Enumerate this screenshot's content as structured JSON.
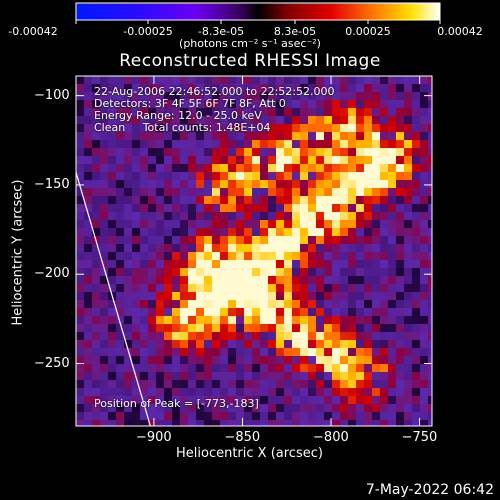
{
  "colorbar": {
    "tick_labels": [
      "-0.00042",
      "-0.00025",
      "-8.3e-05",
      "8.3e-05",
      "0.00025",
      "0.00042"
    ],
    "units": "(photons cm⁻² s⁻¹ asec⁻²)",
    "range": [
      -0.00042,
      0.00042
    ]
  },
  "header": {
    "title": "Reconstructed RHESSI Image"
  },
  "overlay": {
    "line1": "22-Aug-2006 22:46:52.000 to 22:52:52.000",
    "line2": "Detectors: 3F 4F 5F 6F 7F 8F, Att 0",
    "line3": "Energy Range: 12.0 - 25.0 keV",
    "line4": "Clean     Total counts: 1.48E+04",
    "peak": "Position of Peak = [-773,-183]"
  },
  "footer": {
    "date": "7-May-2022 06:42"
  },
  "chart_data": {
    "type": "heatmap",
    "title": "Reconstructed RHESSI Image",
    "xlabel": "Heliocentric X (arcsec)",
    "ylabel": "Heliocentric Y (arcsec)",
    "xlim": [
      -944,
      -743
    ],
    "ylim": [
      -285,
      -89
    ],
    "x_ticks": [
      -900,
      -850,
      -800,
      -750
    ],
    "x_tick_labels": [
      "-900",
      "-850",
      "-800",
      "-750"
    ],
    "y_ticks": [
      -100,
      -150,
      -200,
      -250
    ],
    "y_tick_labels": [
      "-100",
      "-150",
      "-200",
      "-250"
    ],
    "limb_line": [
      [
        -944,
        -143
      ],
      [
        -902,
        -285
      ]
    ],
    "peak_position": [
      -773,
      -183
    ],
    "emission_ridges": [
      {
        "from": [
          -880,
          -225
        ],
        "to": [
          -768,
          -135
        ],
        "peak_value": 0.00042
      },
      {
        "from": [
          -870,
          -195
        ],
        "to": [
          -785,
          -255
        ],
        "peak_value": 0.00034
      },
      {
        "from": [
          -860,
          -150
        ],
        "to": [
          -790,
          -120
        ],
        "peak_value": 0.0003
      }
    ],
    "colormap": "black-purple-red-yellow-white",
    "grid": false,
    "legend": "none"
  }
}
